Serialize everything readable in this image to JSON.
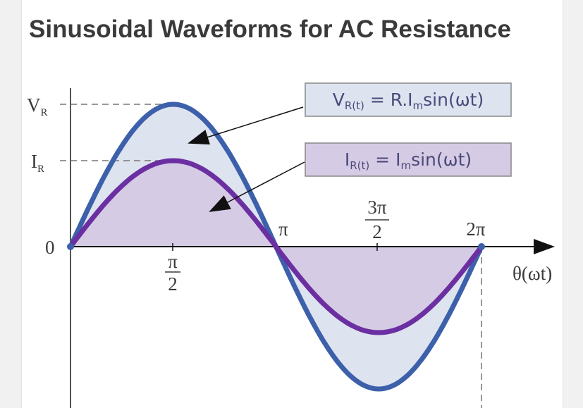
{
  "title": "Sinusoidal Waveforms for AC Resistance",
  "y_labels": [
    {
      "base": "V",
      "sub": "R"
    },
    {
      "base": "I",
      "sub": "R"
    },
    {
      "base": "0"
    }
  ],
  "x_labels": [
    {
      "num": "π",
      "den": "2"
    },
    {
      "base": "π"
    },
    {
      "num": "3π",
      "den": "2"
    },
    {
      "base": "2π"
    }
  ],
  "x_title": "θ(ωt)",
  "formulas": [
    {
      "base": "V",
      "sub": "R(t)",
      "mid": " = R.I",
      "mid_sub": "m",
      "tail": "sin(ωt)"
    },
    {
      "base": "I",
      "sub": "R(t)",
      "mid": " = I",
      "mid_sub": "m",
      "tail": "sin(ωt)"
    }
  ]
}
